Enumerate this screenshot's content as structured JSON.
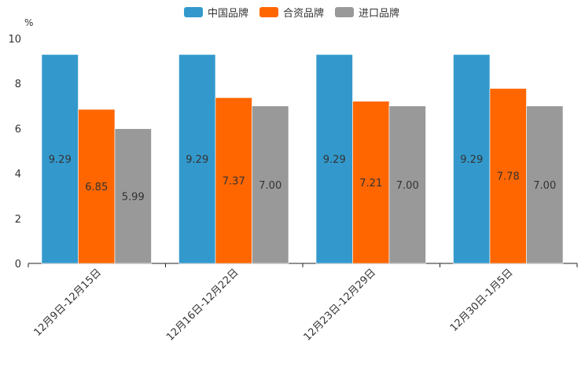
{
  "chart_data": {
    "type": "bar",
    "title": "",
    "xlabel": "",
    "ylabel": "%",
    "ylim": [
      0,
      10
    ],
    "yticks": [
      0,
      2,
      4,
      6,
      8,
      10
    ],
    "categories": [
      "12月9日-12月15日",
      "12月16日-12月22日",
      "12月23日-12月29日",
      "12月30日-1月5日"
    ],
    "series": [
      {
        "name": "中国品牌",
        "color": "#3399cc",
        "values": [
          9.29,
          9.29,
          9.29,
          9.29
        ]
      },
      {
        "name": "合资品牌",
        "color": "#ff6600",
        "values": [
          6.85,
          7.37,
          7.21,
          7.78
        ]
      },
      {
        "name": "进口品牌",
        "color": "#999999",
        "values": [
          5.99,
          7.0,
          7.0,
          7.0
        ]
      }
    ],
    "legend_position": "top-center"
  }
}
